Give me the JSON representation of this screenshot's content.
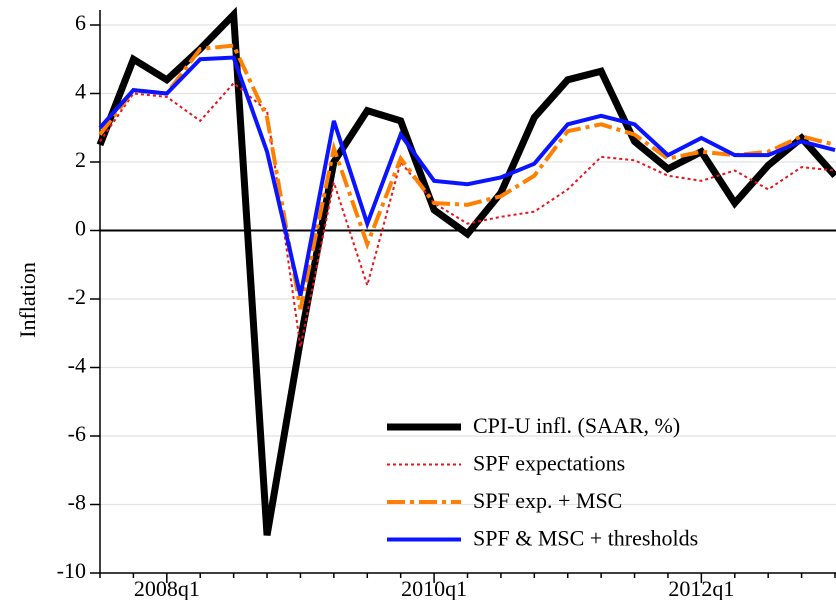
{
  "chart_data": {
    "type": "line",
    "y_label": "Inflation",
    "categories": [
      null,
      null,
      "2008q1",
      null,
      null,
      null,
      null,
      null,
      null,
      null,
      "2010q1",
      null,
      null,
      null,
      null,
      null,
      null,
      null,
      "2012q1",
      null,
      null,
      null,
      null
    ],
    "series": [
      {
        "name": "CPI-U infl. (SAAR, %)",
        "color": "#000000",
        "values": [
          2.5,
          5.0,
          4.4,
          5.3,
          6.3,
          -8.9,
          -3.2,
          2.0,
          3.5,
          3.2,
          0.6,
          -0.1,
          1.1,
          3.3,
          4.4,
          4.65,
          2.6,
          1.8,
          2.3,
          0.8,
          1.9,
          2.7,
          1.6
        ]
      },
      {
        "name": "SPF expectations",
        "color": "#e8141c",
        "values": [
          2.6,
          4.0,
          3.9,
          3.2,
          4.3,
          3.5,
          -3.4,
          1.4,
          -1.6,
          2.0,
          0.8,
          0.2,
          0.4,
          0.55,
          1.2,
          2.15,
          2.05,
          1.6,
          1.45,
          1.75,
          1.2,
          1.85,
          1.75
        ]
      },
      {
        "name": "SPF exp. + MSC",
        "color": "#ff8000",
        "values": [
          2.8,
          4.1,
          4.0,
          5.3,
          5.4,
          3.3,
          -2.3,
          2.4,
          -0.4,
          2.1,
          0.8,
          0.75,
          1.0,
          1.6,
          2.9,
          3.1,
          2.8,
          2.1,
          2.3,
          2.2,
          2.3,
          2.75,
          2.5
        ]
      },
      {
        "name": "SPF & MSC + thresholds",
        "color": "#0a14ff",
        "values": [
          3.0,
          4.1,
          4.0,
          5.0,
          5.05,
          2.3,
          -1.9,
          3.2,
          0.2,
          2.8,
          1.45,
          1.35,
          1.55,
          1.95,
          3.1,
          3.35,
          3.1,
          2.2,
          2.7,
          2.2,
          2.2,
          2.6,
          2.35
        ]
      }
    ],
    "ylim": [
      -10,
      6.3
    ],
    "yticks": [
      -10,
      -8,
      -6,
      -4,
      -2,
      0,
      2,
      4,
      6
    ],
    "grid": true,
    "legend": "lower right"
  }
}
